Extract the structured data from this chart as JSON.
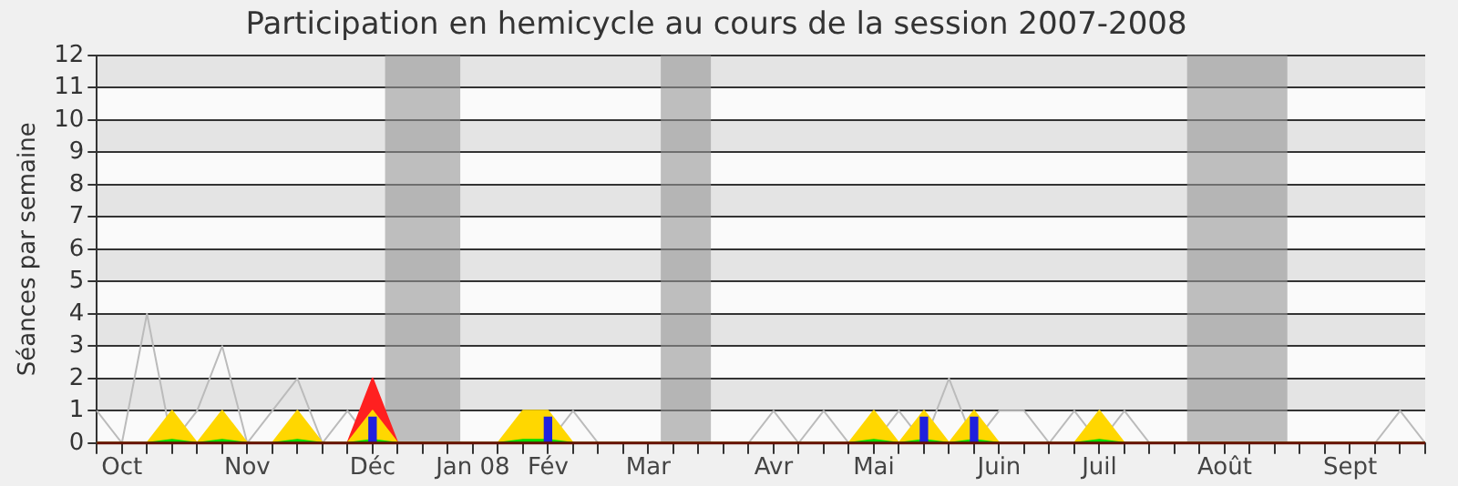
{
  "chart_data": {
    "type": "area",
    "title": "Participation en hemicycle au cours de la session 2007-2008",
    "ylabel": "Séances par semaine",
    "categories": [
      null,
      "Oct",
      null,
      null,
      null,
      null,
      "Nov",
      null,
      null,
      null,
      null,
      "Déc",
      null,
      null,
      null,
      "Jan 08",
      null,
      null,
      "Fév",
      null,
      null,
      null,
      "Mar",
      null,
      null,
      null,
      null,
      "Avr",
      null,
      null,
      null,
      "Mai",
      null,
      null,
      null,
      null,
      "Juin",
      null,
      null,
      null,
      "Juil",
      null,
      null,
      null,
      null,
      "Août",
      null,
      null,
      null,
      null,
      "Sept",
      null,
      null,
      null
    ],
    "ylim": [
      0,
      12
    ],
    "yticks": [
      0,
      1,
      2,
      3,
      4,
      5,
      6,
      7,
      8,
      9,
      10,
      11,
      12
    ],
    "grid": "y",
    "legend": false,
    "marker": "none",
    "series": [
      {
        "type": "line",
        "color": "#bbbbbb",
        "values": [
          1,
          0,
          4,
          0,
          1,
          3,
          0,
          1,
          2,
          0,
          1,
          0,
          0,
          0,
          0,
          0,
          0,
          0,
          0,
          1,
          0,
          0,
          0,
          0,
          0,
          0,
          0,
          1,
          0,
          1,
          0,
          0,
          1,
          0,
          2,
          0,
          1,
          1,
          0,
          1,
          0,
          1,
          0,
          0,
          0,
          0,
          0,
          0,
          0,
          0,
          0,
          0,
          1,
          0
        ]
      },
      {
        "color": "#ff2020",
        "values": [
          0,
          0,
          0,
          0,
          0,
          0,
          0,
          0,
          0,
          0,
          0,
          2,
          0,
          0,
          0,
          0,
          0,
          0,
          0,
          0,
          0,
          0,
          0,
          0,
          0,
          0,
          0,
          0,
          0,
          0,
          0,
          0,
          0,
          0,
          0,
          0,
          0,
          0,
          0,
          0,
          0,
          0,
          0,
          0,
          0,
          0,
          0,
          0,
          0,
          0,
          0,
          0,
          0,
          0
        ]
      },
      {
        "color": "#ffd700",
        "values": [
          0,
          0,
          0,
          1,
          0,
          1,
          0,
          0,
          1,
          0,
          0,
          1,
          0,
          0,
          0,
          0,
          0,
          1,
          1,
          0,
          0,
          0,
          0,
          0,
          0,
          0,
          0,
          0,
          0,
          0,
          0,
          1,
          0,
          1,
          0,
          1,
          0,
          0,
          0,
          0,
          1,
          0,
          0,
          0,
          0,
          0,
          0,
          0,
          0,
          0,
          0,
          0,
          0,
          0
        ]
      },
      {
        "color": "#00dd00",
        "values": [
          0,
          0,
          0,
          0.1,
          0,
          0.1,
          0,
          0,
          0.1,
          0,
          0,
          0.1,
          0,
          0,
          0,
          0,
          0,
          0.1,
          0.1,
          0,
          0,
          0,
          0,
          0,
          0,
          0,
          0,
          0,
          0,
          0,
          0,
          0.1,
          0,
          0.1,
          0,
          0.1,
          0,
          0,
          0,
          0,
          0.1,
          0,
          0,
          0,
          0,
          0,
          0,
          0,
          0,
          0,
          0,
          0,
          0,
          0
        ]
      },
      {
        "type": "bar",
        "color": "#2020dd",
        "values": [
          null,
          null,
          null,
          null,
          null,
          null,
          null,
          null,
          null,
          null,
          null,
          0.8,
          null,
          null,
          null,
          null,
          null,
          null,
          0.8,
          null,
          null,
          null,
          null,
          null,
          null,
          null,
          null,
          null,
          null,
          null,
          null,
          null,
          null,
          0.8,
          null,
          0.8,
          null,
          null,
          null,
          null,
          null,
          null,
          null,
          null,
          null,
          null,
          null,
          null,
          null,
          null,
          null,
          null,
          null,
          null
        ]
      }
    ]
  }
}
